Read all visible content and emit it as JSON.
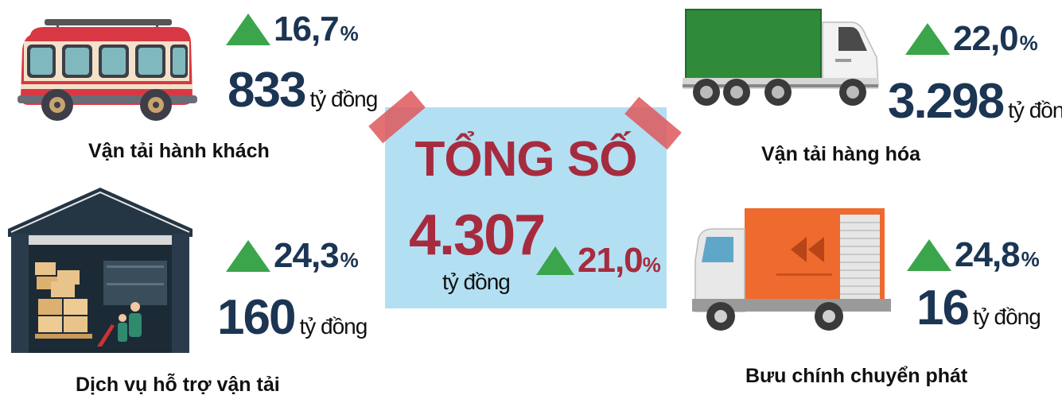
{
  "total": {
    "title": "TỔNG SỐ",
    "value": "4.307",
    "unit": "tỷ đồng",
    "growth": "21,0",
    "growth_sign": "%"
  },
  "passenger": {
    "label": "Vận tải hành khách",
    "growth": "16,7",
    "growth_sign": "%",
    "value": "833",
    "unit": "tỷ đồng",
    "icon": "bus-icon"
  },
  "freight": {
    "label": "Vận tải hàng hóa",
    "growth": "22,0",
    "growth_sign": "%",
    "value": "3.298",
    "unit": "tỷ đồng",
    "icon": "truck-icon"
  },
  "support": {
    "label": "Dịch vụ hỗ trợ vận tải",
    "growth": "24,3",
    "growth_sign": "%",
    "value": "160",
    "unit": "tỷ đồng",
    "icon": "warehouse-icon"
  },
  "postal": {
    "label": "Bưu chính chuyển phát",
    "growth": "24,8",
    "growth_sign": "%",
    "value": "16",
    "unit": "tỷ đồng",
    "icon": "delivery-van-icon"
  },
  "colors": {
    "navy": "#1b3553",
    "crimson": "#a72b3e",
    "up_green": "#3aa54a",
    "panel_blue": "#b3dff3"
  }
}
